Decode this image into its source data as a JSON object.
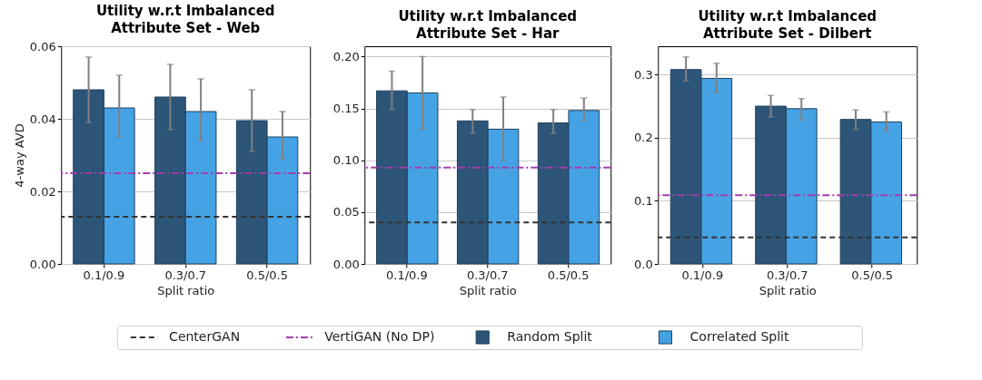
{
  "chart_data": [
    {
      "type": "bar",
      "title": "Utility w.r.t Imbalanced Attribute Set - Web",
      "xlabel": "Split ratio",
      "ylabel": "4-way AVD",
      "categories": [
        "0.1/0.9",
        "0.3/0.7",
        "0.5/0.5"
      ],
      "series": [
        {
          "name": "Random Split",
          "color": "#2c5578",
          "values": [
            0.048,
            0.046,
            0.0395
          ],
          "errors": [
            [
              0.039,
              0.057
            ],
            [
              0.037,
              0.055
            ],
            [
              0.031,
              0.048
            ]
          ]
        },
        {
          "name": "Correlated Split",
          "color": "#45a3e5",
          "values": [
            0.043,
            0.042,
            0.035
          ],
          "errors": [
            [
              0.035,
              0.052
            ],
            [
              0.034,
              0.051
            ],
            [
              0.029,
              0.042
            ]
          ]
        }
      ],
      "ref_lines": [
        {
          "axis": "y",
          "value": 0.013,
          "label": "CenterGAN",
          "color": "#333333",
          "line_style": "dashed"
        },
        {
          "axis": "y",
          "value": 0.025,
          "label": "VertiGAN (No DP)",
          "color": "#a23cad",
          "line_style": "dashdot"
        }
      ],
      "ylim": [
        0,
        0.06
      ],
      "yticks": [
        {
          "value": 0,
          "label": "0.00"
        },
        0.02,
        0.04,
        0.06
      ],
      "grid": "y",
      "legend": "bottom"
    },
    {
      "type": "bar",
      "title": "Utility w.r.t Imbalanced Attribute Set - Har",
      "xlabel": "Split ratio",
      "categories": [
        "0.1/0.9",
        "0.3/0.7",
        "0.5/0.5"
      ],
      "series": [
        {
          "name": "Random Split",
          "color": "#2c5578",
          "values": [
            0.167,
            0.138,
            0.136
          ],
          "errors": [
            [
              0.149,
              0.186
            ],
            [
              0.126,
              0.149
            ],
            [
              0.126,
              0.149
            ]
          ]
        },
        {
          "name": "Correlated Split",
          "color": "#45a3e5",
          "values": [
            0.165,
            0.13,
            0.148
          ],
          "errors": [
            [
              0.13,
              0.2
            ],
            [
              0.1,
              0.161
            ],
            [
              0.138,
              0.16
            ]
          ]
        }
      ],
      "ref_lines": [
        {
          "axis": "y",
          "value": 0.04,
          "color": "#333333",
          "line_style": "dashed"
        },
        {
          "axis": "y",
          "value": 0.093,
          "color": "#a23cad",
          "line_style": "dashdot"
        }
      ],
      "ylim": [
        0,
        0.21
      ],
      "yticks": [
        {
          "value": 0,
          "label": "0.00"
        },
        0.05,
        {
          "value": 0.1,
          "label": "0.10"
        },
        0.15,
        {
          "value": 0.2,
          "label": "0.20"
        }
      ],
      "grid": "y"
    },
    {
      "type": "bar",
      "title": "Utility w.r.t Imbalanced Attribute Set - Dilbert",
      "xlabel": "Split ratio",
      "categories": [
        "0.1/0.9",
        "0.3/0.7",
        "0.5/0.5"
      ],
      "series": [
        {
          "name": "Random Split",
          "color": "#2c5578",
          "values": [
            0.308,
            0.25,
            0.229
          ],
          "errors": [
            [
              0.29,
              0.328
            ],
            [
              0.233,
              0.267
            ],
            [
              0.213,
              0.244
            ]
          ]
        },
        {
          "name": "Correlated Split",
          "color": "#45a3e5",
          "values": [
            0.294,
            0.246,
            0.225
          ],
          "errors": [
            [
              0.272,
              0.318
            ],
            [
              0.228,
              0.262
            ],
            [
              0.21,
              0.241
            ]
          ]
        }
      ],
      "ref_lines": [
        {
          "axis": "y",
          "value": 0.042,
          "color": "#333333",
          "line_style": "dashed"
        },
        {
          "axis": "y",
          "value": 0.109,
          "color": "#a23cad",
          "line_style": "dashdot"
        }
      ],
      "ylim": [
        0,
        0.345
      ],
      "yticks": [
        {
          "value": 0,
          "label": "0.0"
        },
        0.1,
        0.2,
        0.3
      ],
      "grid": "y"
    }
  ]
}
